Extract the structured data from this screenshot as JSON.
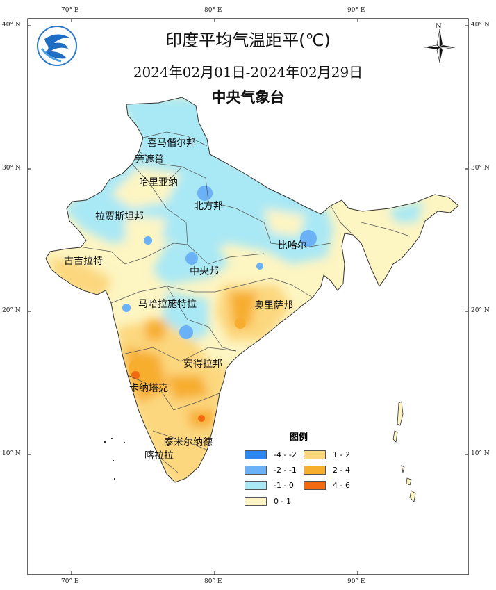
{
  "title": "印度平均气温距平(℃)",
  "subtitle": "2024年02月01日-2024年02月29日",
  "agency": "中央气象台",
  "north_label": "N",
  "axes": {
    "top_lon": [
      "70° E",
      "80° E",
      "90° E"
    ],
    "bottom_lon": [
      "70° E",
      "80° E",
      "90° E"
    ],
    "left_lat": [
      "40° N",
      "30° N",
      "20° N",
      "10° N"
    ],
    "right_lat": [
      "40° N",
      "30° N",
      "20° N",
      "10° N"
    ]
  },
  "legend": {
    "title": "图例",
    "items": [
      {
        "range": "-4 - -2",
        "color": "#2e86f0"
      },
      {
        "range": "-2 - -1",
        "color": "#6ab2f5"
      },
      {
        "range": "-1 - 0",
        "color": "#a9e8f5"
      },
      {
        "range": "0 - 1",
        "color": "#fdf5c2"
      },
      {
        "range": "1 - 2",
        "color": "#fcd77e"
      },
      {
        "range": "2 - 4",
        "color": "#f7ad2e"
      },
      {
        "range": "4 - 6",
        "color": "#f36a10"
      }
    ]
  },
  "regions": [
    {
      "name": "喜马偕尔邦"
    },
    {
      "name": "旁遮普"
    },
    {
      "name": "哈里亚纳"
    },
    {
      "name": "北方邦"
    },
    {
      "name": "拉贾斯坦邦"
    },
    {
      "name": "比哈尔"
    },
    {
      "name": "古吉拉特"
    },
    {
      "name": "中央邦"
    },
    {
      "name": "马哈拉施特拉"
    },
    {
      "name": "奥里萨邦"
    },
    {
      "name": "安得拉邦"
    },
    {
      "name": "卡纳塔克"
    },
    {
      "name": "泰米尔纳德"
    },
    {
      "name": "喀拉拉"
    }
  ]
}
